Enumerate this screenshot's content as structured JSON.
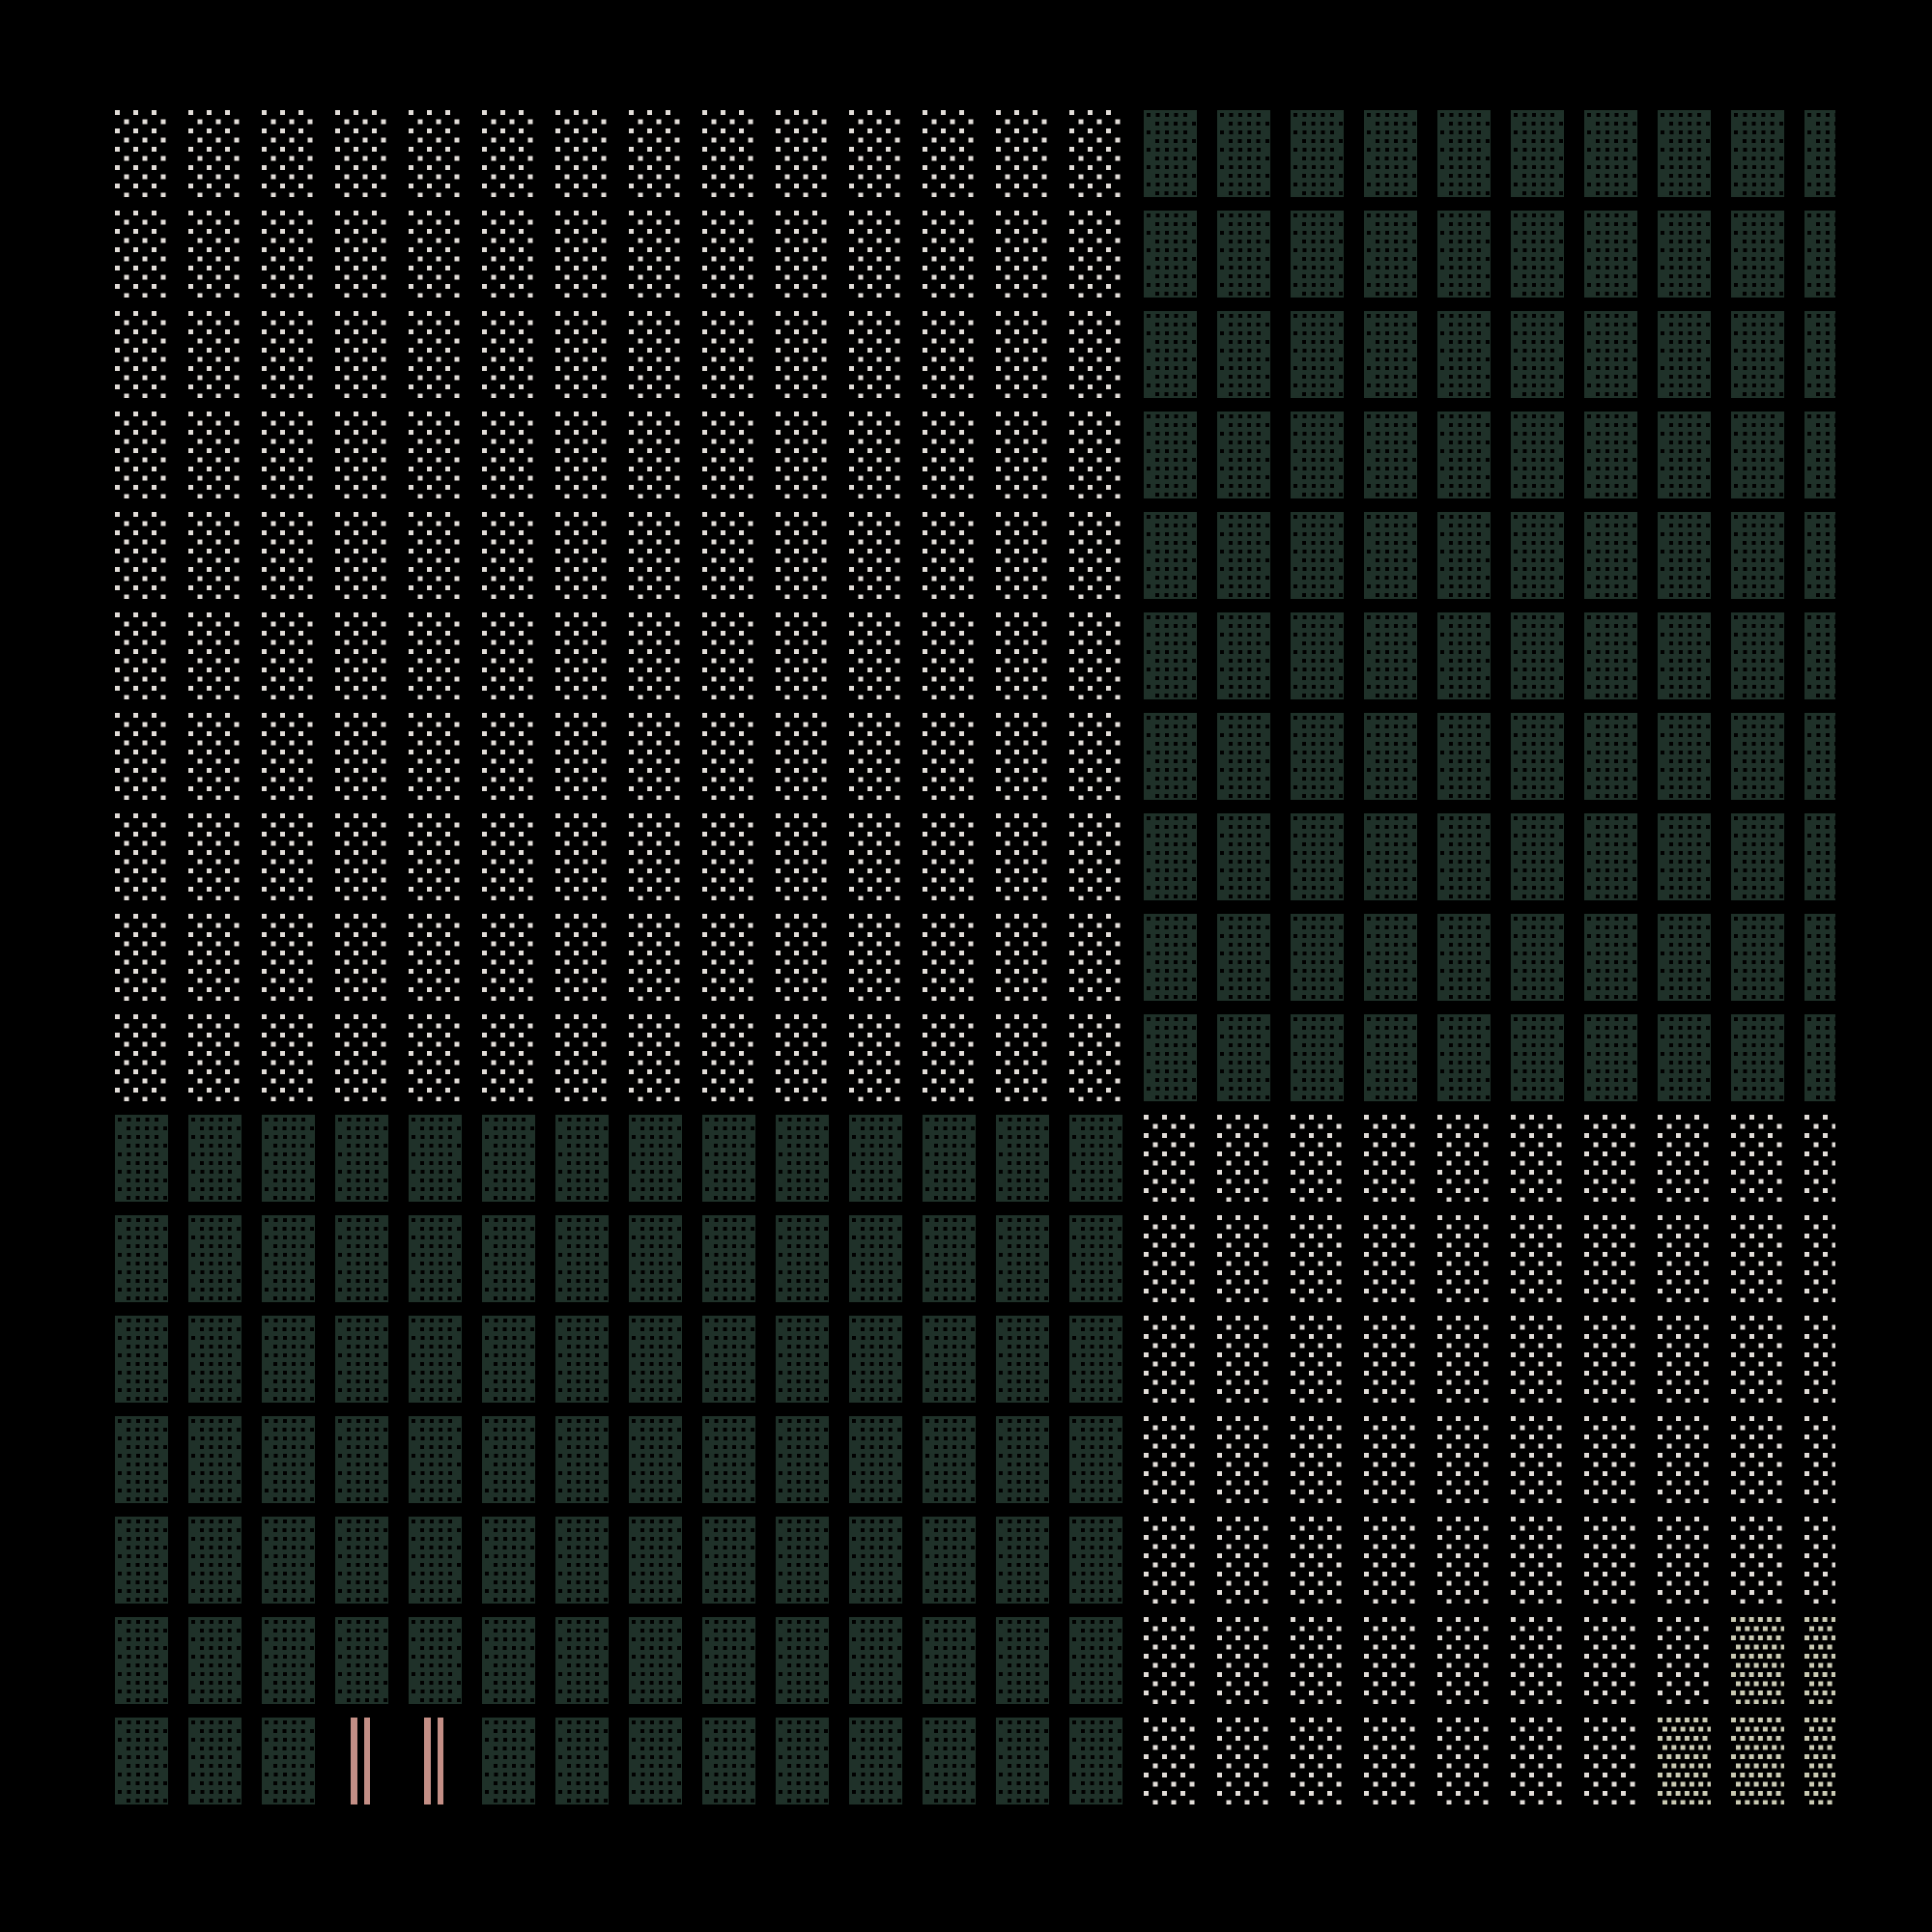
{
  "colors": {
    "background": "#000000",
    "sparse_dot": "#e2ddd8",
    "dense_dot": "#c9c9b2",
    "mesh": "#1f3129",
    "bars": "#c48f86"
  },
  "quadrants": [
    {
      "id": "top-left",
      "columns": 14,
      "rows": 10,
      "tile": "sparse-dots"
    },
    {
      "id": "top-right",
      "columns": 10,
      "rows": 10,
      "tile": "green-mesh"
    },
    {
      "id": "bottom-left",
      "columns": 14,
      "rows": 7,
      "tile": "green-mesh"
    },
    {
      "id": "bottom-right",
      "columns": 10,
      "rows": 7,
      "tile": "sparse-dots"
    }
  ],
  "exceptions": [
    {
      "quadrant": "bottom-left",
      "row": 6,
      "col": 3,
      "tile": "double-bars"
    },
    {
      "quadrant": "bottom-left",
      "row": 6,
      "col": 4,
      "tile": "double-bars"
    },
    {
      "quadrant": "bottom-right",
      "row": 5,
      "col": 8,
      "tile": "dense-dots"
    },
    {
      "quadrant": "bottom-right",
      "row": 5,
      "col": 9,
      "tile": "dense-dots"
    },
    {
      "quadrant": "bottom-right",
      "row": 6,
      "col": 7,
      "tile": "dense-dots"
    },
    {
      "quadrant": "bottom-right",
      "row": 6,
      "col": 8,
      "tile": "dense-dots"
    },
    {
      "quadrant": "bottom-right",
      "row": 6,
      "col": 9,
      "tile": "dense-dots"
    }
  ]
}
